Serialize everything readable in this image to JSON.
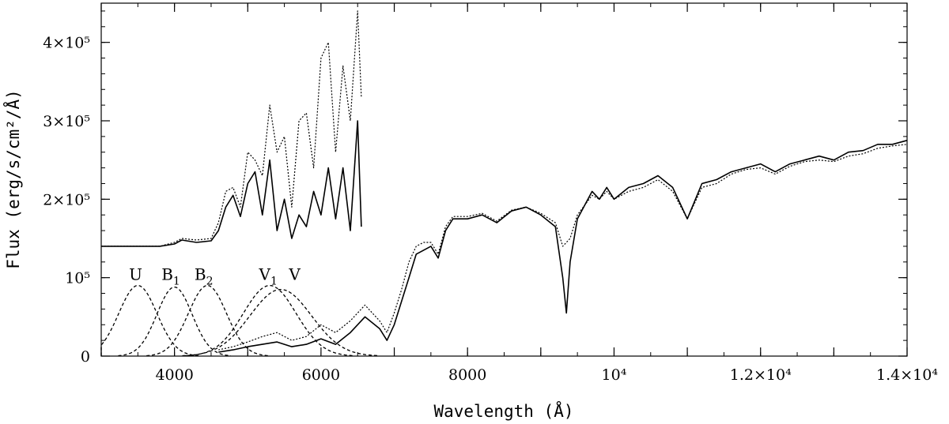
{
  "chart_data": {
    "type": "line",
    "title": "",
    "xlabel": "Wavelength (Å)",
    "ylabel": "Flux (erg/s/cm²/Å)",
    "xlim": [
      3000,
      14000
    ],
    "ylim": [
      0,
      450000
    ],
    "x_tick_labels": [
      {
        "value": 4000,
        "label": "4000"
      },
      {
        "value": 6000,
        "label": "6000"
      },
      {
        "value": 8000,
        "label": "8000"
      },
      {
        "value": 10000,
        "label": "10⁴"
      },
      {
        "value": 12000,
        "label": "1.2×10⁴"
      },
      {
        "value": 14000,
        "label": "1.4×10⁴"
      }
    ],
    "y_tick_labels": [
      {
        "value": 0,
        "label": "0"
      },
      {
        "value": 100000,
        "label": "10⁵"
      },
      {
        "value": 200000,
        "label": "2×10⁵"
      },
      {
        "value": 300000,
        "label": "3×10⁵"
      },
      {
        "value": 400000,
        "label": "4×10⁵"
      }
    ],
    "series": [
      {
        "style": "solid",
        "x": [
          3000,
          3800,
          4000,
          4100,
          4300,
          4500,
          4600,
          4700,
          4800,
          4900,
          5000,
          5100,
          5200,
          5300,
          5400,
          5500,
          5600,
          5700,
          5800,
          5900,
          6000,
          6100,
          6200,
          6300,
          6400,
          6500,
          6550
        ],
        "y": [
          140000,
          140000,
          143000,
          148000,
          145000,
          147000,
          160000,
          190000,
          205000,
          178000,
          220000,
          235000,
          180000,
          250000,
          160000,
          200000,
          150000,
          180000,
          165000,
          210000,
          180000,
          240000,
          175000,
          240000,
          160000,
          300000,
          165000
        ]
      },
      {
        "style": "dotted",
        "x": [
          3000,
          3800,
          4000,
          4100,
          4300,
          4500,
          4600,
          4700,
          4800,
          4900,
          5000,
          5100,
          5200,
          5300,
          5400,
          5500,
          5600,
          5700,
          5800,
          5900,
          6000,
          6100,
          6200,
          6300,
          6400,
          6500,
          6550
        ],
        "y": [
          140000,
          140000,
          145000,
          150000,
          148000,
          150000,
          170000,
          210000,
          215000,
          190000,
          260000,
          250000,
          230000,
          320000,
          260000,
          280000,
          190000,
          300000,
          310000,
          240000,
          380000,
          400000,
          260000,
          370000,
          300000,
          440000,
          330000
        ]
      },
      {
        "style": "solid",
        "x": [
          4600,
          4800,
          5000,
          5200,
          5400,
          5600,
          5800,
          6000,
          6200,
          6400,
          6600,
          6800,
          6900,
          7000,
          7100,
          7200,
          7300,
          7400,
          7500,
          7600,
          7700,
          7800,
          8000,
          8200,
          8400,
          8600,
          8800,
          9000,
          9200,
          9300,
          9350,
          9400,
          9500,
          9700,
          9800,
          9900,
          10000,
          10200,
          10400,
          10600,
          10800,
          11000,
          11200,
          11400,
          11600,
          11800,
          12000,
          12200,
          12400,
          12600,
          12800,
          13000,
          13200,
          13400,
          13600,
          13800,
          14000
        ],
        "y": [
          5000,
          8000,
          12000,
          15000,
          18000,
          12000,
          15000,
          22000,
          15000,
          30000,
          50000,
          35000,
          20000,
          40000,
          70000,
          100000,
          130000,
          135000,
          140000,
          125000,
          160000,
          175000,
          175000,
          180000,
          170000,
          185000,
          190000,
          180000,
          165000,
          100000,
          55000,
          120000,
          175000,
          210000,
          200000,
          215000,
          200000,
          215000,
          220000,
          230000,
          215000,
          175000,
          220000,
          225000,
          235000,
          240000,
          245000,
          235000,
          245000,
          250000,
          255000,
          250000,
          260000,
          262000,
          270000,
          270000,
          275000
        ]
      },
      {
        "style": "dotted",
        "x": [
          4600,
          4800,
          5000,
          5200,
          5400,
          5600,
          5800,
          6000,
          6200,
          6400,
          6600,
          6800,
          6900,
          7000,
          7100,
          7200,
          7300,
          7400,
          7500,
          7600,
          7700,
          7800,
          8000,
          8200,
          8400,
          8600,
          8800,
          9000,
          9200,
          9300,
          9350,
          9400,
          9500,
          9700,
          9800,
          9900,
          10000,
          10200,
          10400,
          10600,
          10800,
          11000,
          11200,
          11400,
          11600,
          11800,
          12000,
          12200,
          12400,
          12600,
          12800,
          13000,
          13200,
          13400,
          13600,
          13800,
          14000
        ],
        "y": [
          8000,
          12000,
          18000,
          25000,
          30000,
          20000,
          25000,
          40000,
          30000,
          45000,
          65000,
          45000,
          30000,
          55000,
          85000,
          120000,
          140000,
          145000,
          145000,
          130000,
          165000,
          178000,
          178000,
          182000,
          172000,
          186000,
          190000,
          182000,
          170000,
          140000,
          145000,
          150000,
          180000,
          205000,
          200000,
          210000,
          200000,
          210000,
          215000,
          225000,
          210000,
          175000,
          215000,
          220000,
          232000,
          238000,
          240000,
          232000,
          242000,
          248000,
          250000,
          248000,
          255000,
          258000,
          265000,
          268000,
          270000
        ]
      }
    ],
    "filter_curves": [
      {
        "name": "U",
        "center": 3500,
        "width": 260,
        "peak": 90000
      },
      {
        "name": "B",
        "sub": "1",
        "center": 4000,
        "width": 240,
        "peak": 88000
      },
      {
        "name": "B",
        "sub": "2",
        "center": 4450,
        "width": 260,
        "peak": 90000
      },
      {
        "name": "V",
        "sub": "1",
        "center": 5300,
        "width": 360,
        "peak": 90000
      },
      {
        "name": "V",
        "sub": "",
        "center": 5450,
        "width": 420,
        "peak": 85000
      }
    ],
    "filter_labels": [
      {
        "name": "U",
        "sub": "",
        "x": 3470,
        "y": 97000
      },
      {
        "name": "B",
        "sub": "1",
        "x": 3950,
        "y": 97000
      },
      {
        "name": "B",
        "sub": "2",
        "x": 4400,
        "y": 97000
      },
      {
        "name": "V",
        "sub": "1",
        "x": 5280,
        "y": 97000
      },
      {
        "name": "V",
        "sub": "",
        "x": 5640,
        "y": 97000
      }
    ],
    "grid": false,
    "legend": "none"
  }
}
